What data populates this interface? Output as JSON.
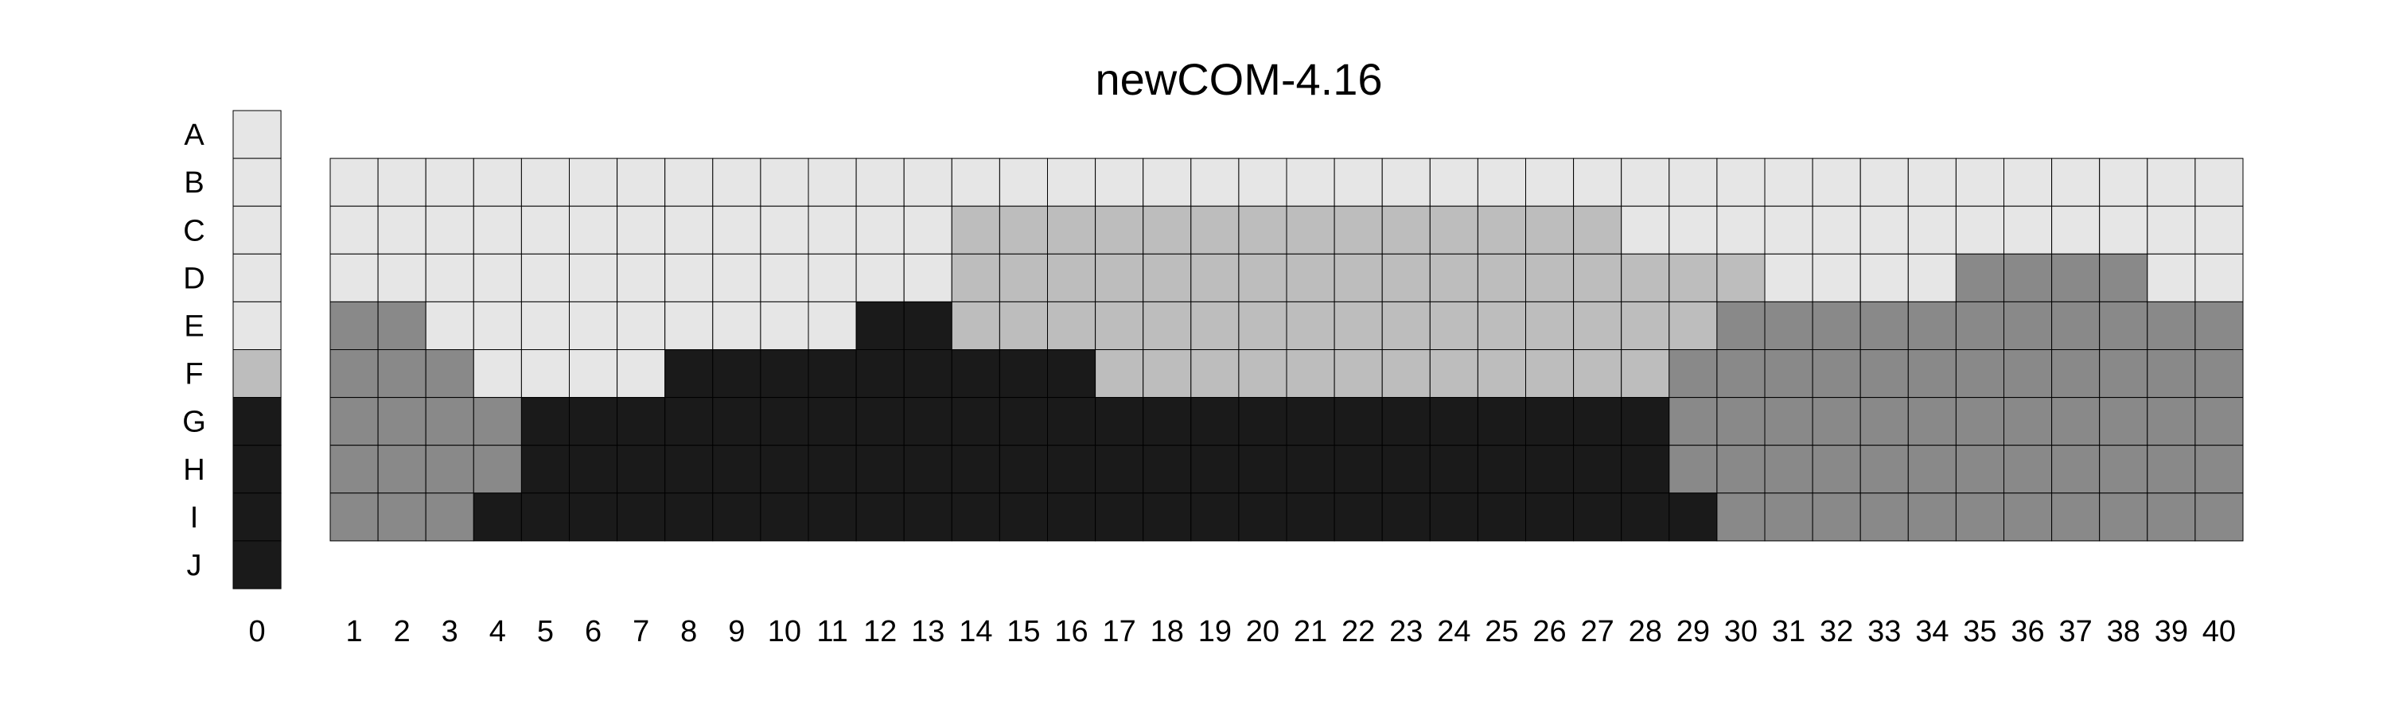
{
  "title": "newCOM-4.16",
  "palette": {
    "1": "#e6e6e6",
    "2": "#bdbdbd",
    "3": "#898989",
    "4": "#1a1a1a"
  },
  "row_labels": [
    "A",
    "B",
    "C",
    "D",
    "E",
    "F",
    "G",
    "H",
    "I",
    "J"
  ],
  "column_labels": [
    "0",
    "1",
    "2",
    "3",
    "4",
    "5",
    "6",
    "7",
    "8",
    "9",
    "10",
    "11",
    "12",
    "13",
    "14",
    "15",
    "16",
    "17",
    "18",
    "19",
    "20",
    "21",
    "22",
    "23",
    "24",
    "25",
    "26",
    "27",
    "28",
    "29",
    "30",
    "31",
    "32",
    "33",
    "34",
    "35",
    "36",
    "37",
    "38",
    "39",
    "40"
  ],
  "reference_column": {
    "label": "0",
    "rows": [
      "A",
      "B",
      "C",
      "D",
      "E",
      "F",
      "G",
      "H",
      "I",
      "J"
    ],
    "levels": [
      1,
      1,
      1,
      1,
      1,
      2,
      4,
      4,
      4,
      4
    ]
  },
  "grid": {
    "rows": [
      "B",
      "C",
      "D",
      "E",
      "F",
      "G",
      "H",
      "I"
    ],
    "columns": [
      "1",
      "2",
      "3",
      "4",
      "5",
      "6",
      "7",
      "8",
      "9",
      "10",
      "11",
      "12",
      "13",
      "14",
      "15",
      "16",
      "17",
      "18",
      "19",
      "20",
      "21",
      "22",
      "23",
      "24",
      "25",
      "26",
      "27",
      "28",
      "29",
      "30",
      "31",
      "32",
      "33",
      "34",
      "35",
      "36",
      "37",
      "38",
      "39",
      "40"
    ],
    "levels": [
      [
        1,
        1,
        1,
        1,
        1,
        1,
        1,
        1,
        1,
        1,
        1,
        1,
        1,
        1,
        1,
        1,
        1,
        1,
        1,
        1,
        1,
        1,
        1,
        1,
        1,
        1,
        1,
        1,
        1,
        1,
        1,
        1,
        1,
        1,
        1,
        1,
        1,
        1,
        1,
        1
      ],
      [
        1,
        1,
        1,
        1,
        1,
        1,
        1,
        1,
        1,
        1,
        1,
        1,
        1,
        2,
        2,
        2,
        2,
        2,
        2,
        2,
        2,
        2,
        2,
        2,
        2,
        2,
        2,
        1,
        1,
        1,
        1,
        1,
        1,
        1,
        1,
        1,
        1,
        1,
        1,
        1
      ],
      [
        1,
        1,
        1,
        1,
        1,
        1,
        1,
        1,
        1,
        1,
        1,
        1,
        1,
        2,
        2,
        2,
        2,
        2,
        2,
        2,
        2,
        2,
        2,
        2,
        2,
        2,
        2,
        2,
        2,
        2,
        1,
        1,
        1,
        1,
        3,
        3,
        3,
        3,
        1,
        1
      ],
      [
        3,
        3,
        1,
        1,
        1,
        1,
        1,
        1,
        1,
        1,
        1,
        4,
        4,
        2,
        2,
        2,
        2,
        2,
        2,
        2,
        2,
        2,
        2,
        2,
        2,
        2,
        2,
        2,
        2,
        3,
        3,
        3,
        3,
        3,
        3,
        3,
        3,
        3,
        3,
        3
      ],
      [
        3,
        3,
        3,
        1,
        1,
        1,
        1,
        4,
        4,
        4,
        4,
        4,
        4,
        4,
        4,
        4,
        2,
        2,
        2,
        2,
        2,
        2,
        2,
        2,
        2,
        2,
        2,
        2,
        3,
        3,
        3,
        3,
        3,
        3,
        3,
        3,
        3,
        3,
        3,
        3
      ],
      [
        3,
        3,
        3,
        3,
        4,
        4,
        4,
        4,
        4,
        4,
        4,
        4,
        4,
        4,
        4,
        4,
        4,
        4,
        4,
        4,
        4,
        4,
        4,
        4,
        4,
        4,
        4,
        4,
        3,
        3,
        3,
        3,
        3,
        3,
        3,
        3,
        3,
        3,
        3,
        3
      ],
      [
        3,
        3,
        3,
        3,
        4,
        4,
        4,
        4,
        4,
        4,
        4,
        4,
        4,
        4,
        4,
        4,
        4,
        4,
        4,
        4,
        4,
        4,
        4,
        4,
        4,
        4,
        4,
        4,
        3,
        3,
        3,
        3,
        3,
        3,
        3,
        3,
        3,
        3,
        3,
        3
      ],
      [
        3,
        3,
        3,
        4,
        4,
        4,
        4,
        4,
        4,
        4,
        4,
        4,
        4,
        4,
        4,
        4,
        4,
        4,
        4,
        4,
        4,
        4,
        4,
        4,
        4,
        4,
        4,
        4,
        4,
        3,
        3,
        3,
        3,
        3,
        3,
        3,
        3,
        3,
        3,
        3
      ]
    ]
  }
}
